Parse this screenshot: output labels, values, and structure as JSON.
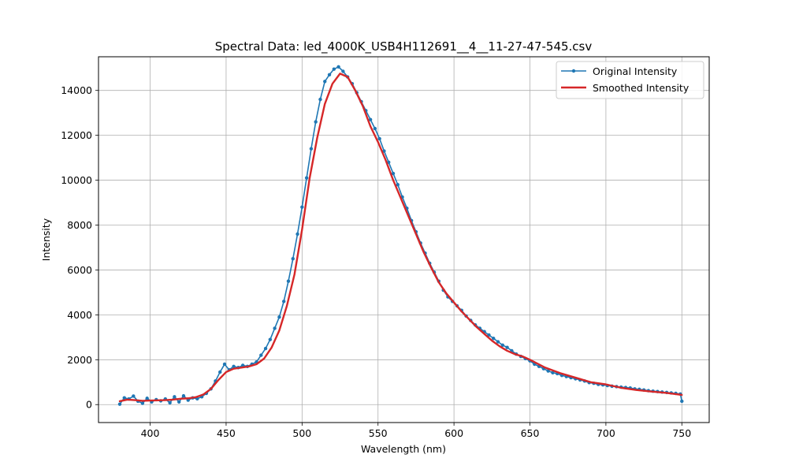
{
  "chart_data": {
    "type": "line",
    "title": "Spectral Data: led_4000K_USB4H112691__4__11-27-47-545.csv",
    "xlabel": "Wavelength (nm)",
    "ylabel": "Intensity",
    "xlim": [
      366,
      768
    ],
    "ylim": [
      -800,
      15500
    ],
    "xticks": [
      400,
      450,
      500,
      550,
      600,
      650,
      700,
      750
    ],
    "yticks": [
      0,
      2000,
      4000,
      6000,
      8000,
      10000,
      12000,
      14000
    ],
    "grid": true,
    "legend_position": "top-right",
    "series": [
      {
        "name": "Original Intensity",
        "color": "#1f77b4",
        "marker": "dot",
        "x": [
          380,
          383,
          386,
          389,
          392,
          395,
          398,
          401,
          404,
          407,
          410,
          413,
          416,
          419,
          422,
          425,
          428,
          431,
          434,
          437,
          440,
          443,
          446,
          449,
          452,
          455,
          458,
          461,
          464,
          467,
          470,
          473,
          476,
          479,
          482,
          485,
          488,
          491,
          494,
          497,
          500,
          503,
          506,
          509,
          512,
          515,
          518,
          521,
          524,
          527,
          530,
          533,
          536,
          539,
          542,
          545,
          548,
          551,
          554,
          557,
          560,
          563,
          566,
          569,
          572,
          575,
          578,
          581,
          584,
          587,
          590,
          593,
          596,
          599,
          602,
          605,
          608,
          611,
          614,
          617,
          620,
          623,
          626,
          629,
          632,
          635,
          638,
          641,
          644,
          647,
          650,
          653,
          656,
          659,
          662,
          665,
          668,
          671,
          674,
          677,
          680,
          683,
          686,
          689,
          692,
          695,
          698,
          701,
          704,
          707,
          710,
          713,
          716,
          719,
          722,
          725,
          728,
          731,
          734,
          737,
          740,
          743,
          746,
          749,
          750
        ],
        "y": [
          20,
          300,
          250,
          380,
          150,
          60,
          280,
          120,
          220,
          170,
          250,
          80,
          350,
          120,
          390,
          200,
          300,
          260,
          350,
          500,
          700,
          1050,
          1450,
          1800,
          1550,
          1700,
          1650,
          1750,
          1700,
          1800,
          1900,
          2200,
          2500,
          2900,
          3400,
          3900,
          4600,
          5500,
          6500,
          7600,
          8800,
          10100,
          11400,
          12600,
          13600,
          14400,
          14700,
          14950,
          15050,
          14850,
          14600,
          14300,
          13900,
          13500,
          13100,
          12700,
          12300,
          11850,
          11300,
          10800,
          10300,
          9800,
          9250,
          8750,
          8200,
          7700,
          7200,
          6750,
          6300,
          5900,
          5500,
          5100,
          4800,
          4600,
          4400,
          4200,
          3950,
          3750,
          3550,
          3400,
          3250,
          3100,
          2950,
          2800,
          2650,
          2550,
          2400,
          2250,
          2150,
          2050,
          1950,
          1800,
          1700,
          1600,
          1500,
          1420,
          1380,
          1300,
          1250,
          1200,
          1150,
          1100,
          1050,
          980,
          950,
          900,
          880,
          850,
          820,
          800,
          780,
          760,
          740,
          700,
          680,
          650,
          620,
          600,
          580,
          560,
          540,
          520,
          500,
          470,
          150
        ]
      },
      {
        "name": "Smoothed Intensity",
        "color": "#d62728",
        "marker": "none",
        "x": [
          380,
          385,
          390,
          395,
          400,
          405,
          410,
          415,
          420,
          425,
          430,
          435,
          440,
          445,
          450,
          455,
          460,
          465,
          470,
          475,
          480,
          485,
          490,
          495,
          500,
          505,
          510,
          515,
          520,
          525,
          530,
          535,
          540,
          545,
          550,
          555,
          560,
          565,
          570,
          575,
          580,
          585,
          590,
          595,
          600,
          605,
          610,
          615,
          620,
          625,
          630,
          635,
          640,
          645,
          650,
          660,
          670,
          680,
          690,
          700,
          710,
          720,
          730,
          740,
          750
        ],
        "y": [
          150,
          220,
          200,
          170,
          180,
          190,
          200,
          220,
          260,
          280,
          330,
          450,
          700,
          1100,
          1450,
          1600,
          1650,
          1700,
          1800,
          2050,
          2550,
          3300,
          4400,
          5800,
          7800,
          10100,
          11900,
          13400,
          14300,
          14750,
          14600,
          14000,
          13300,
          12400,
          11700,
          10900,
          10000,
          9200,
          8400,
          7600,
          6800,
          6100,
          5450,
          4950,
          4550,
          4150,
          3800,
          3450,
          3150,
          2850,
          2600,
          2400,
          2250,
          2150,
          2000,
          1650,
          1400,
          1200,
          1000,
          900,
          750,
          650,
          580,
          520,
          430
        ]
      }
    ]
  }
}
